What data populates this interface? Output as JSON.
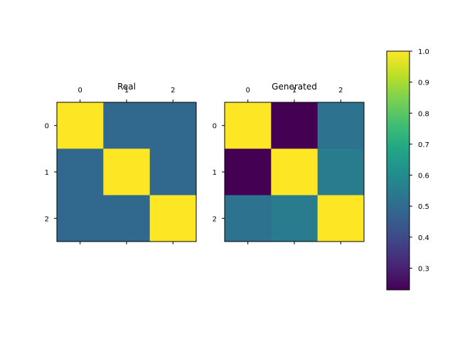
{
  "chart_data": [
    {
      "type": "heatmap",
      "title": "Real",
      "x_ticks": [
        "0",
        "1",
        "2"
      ],
      "y_ticks": [
        "0",
        "1",
        "2"
      ],
      "values": [
        [
          1.0,
          0.49,
          0.49
        ],
        [
          0.49,
          1.0,
          0.49
        ],
        [
          0.49,
          0.49,
          1.0
        ]
      ]
    },
    {
      "type": "heatmap",
      "title": "Generated",
      "x_ticks": [
        "0",
        "1",
        "2"
      ],
      "y_ticks": [
        "0",
        "1",
        "2"
      ],
      "values": [
        [
          1.0,
          0.23,
          0.52
        ],
        [
          0.23,
          1.0,
          0.55
        ],
        [
          0.52,
          0.55,
          1.0
        ]
      ]
    }
  ],
  "colorbar": {
    "colormap": "viridis",
    "range": [
      0.23,
      1.0
    ],
    "ticks": [
      "0.3",
      "0.4",
      "0.5",
      "0.6",
      "0.7",
      "0.8",
      "0.9",
      "1.0"
    ]
  }
}
